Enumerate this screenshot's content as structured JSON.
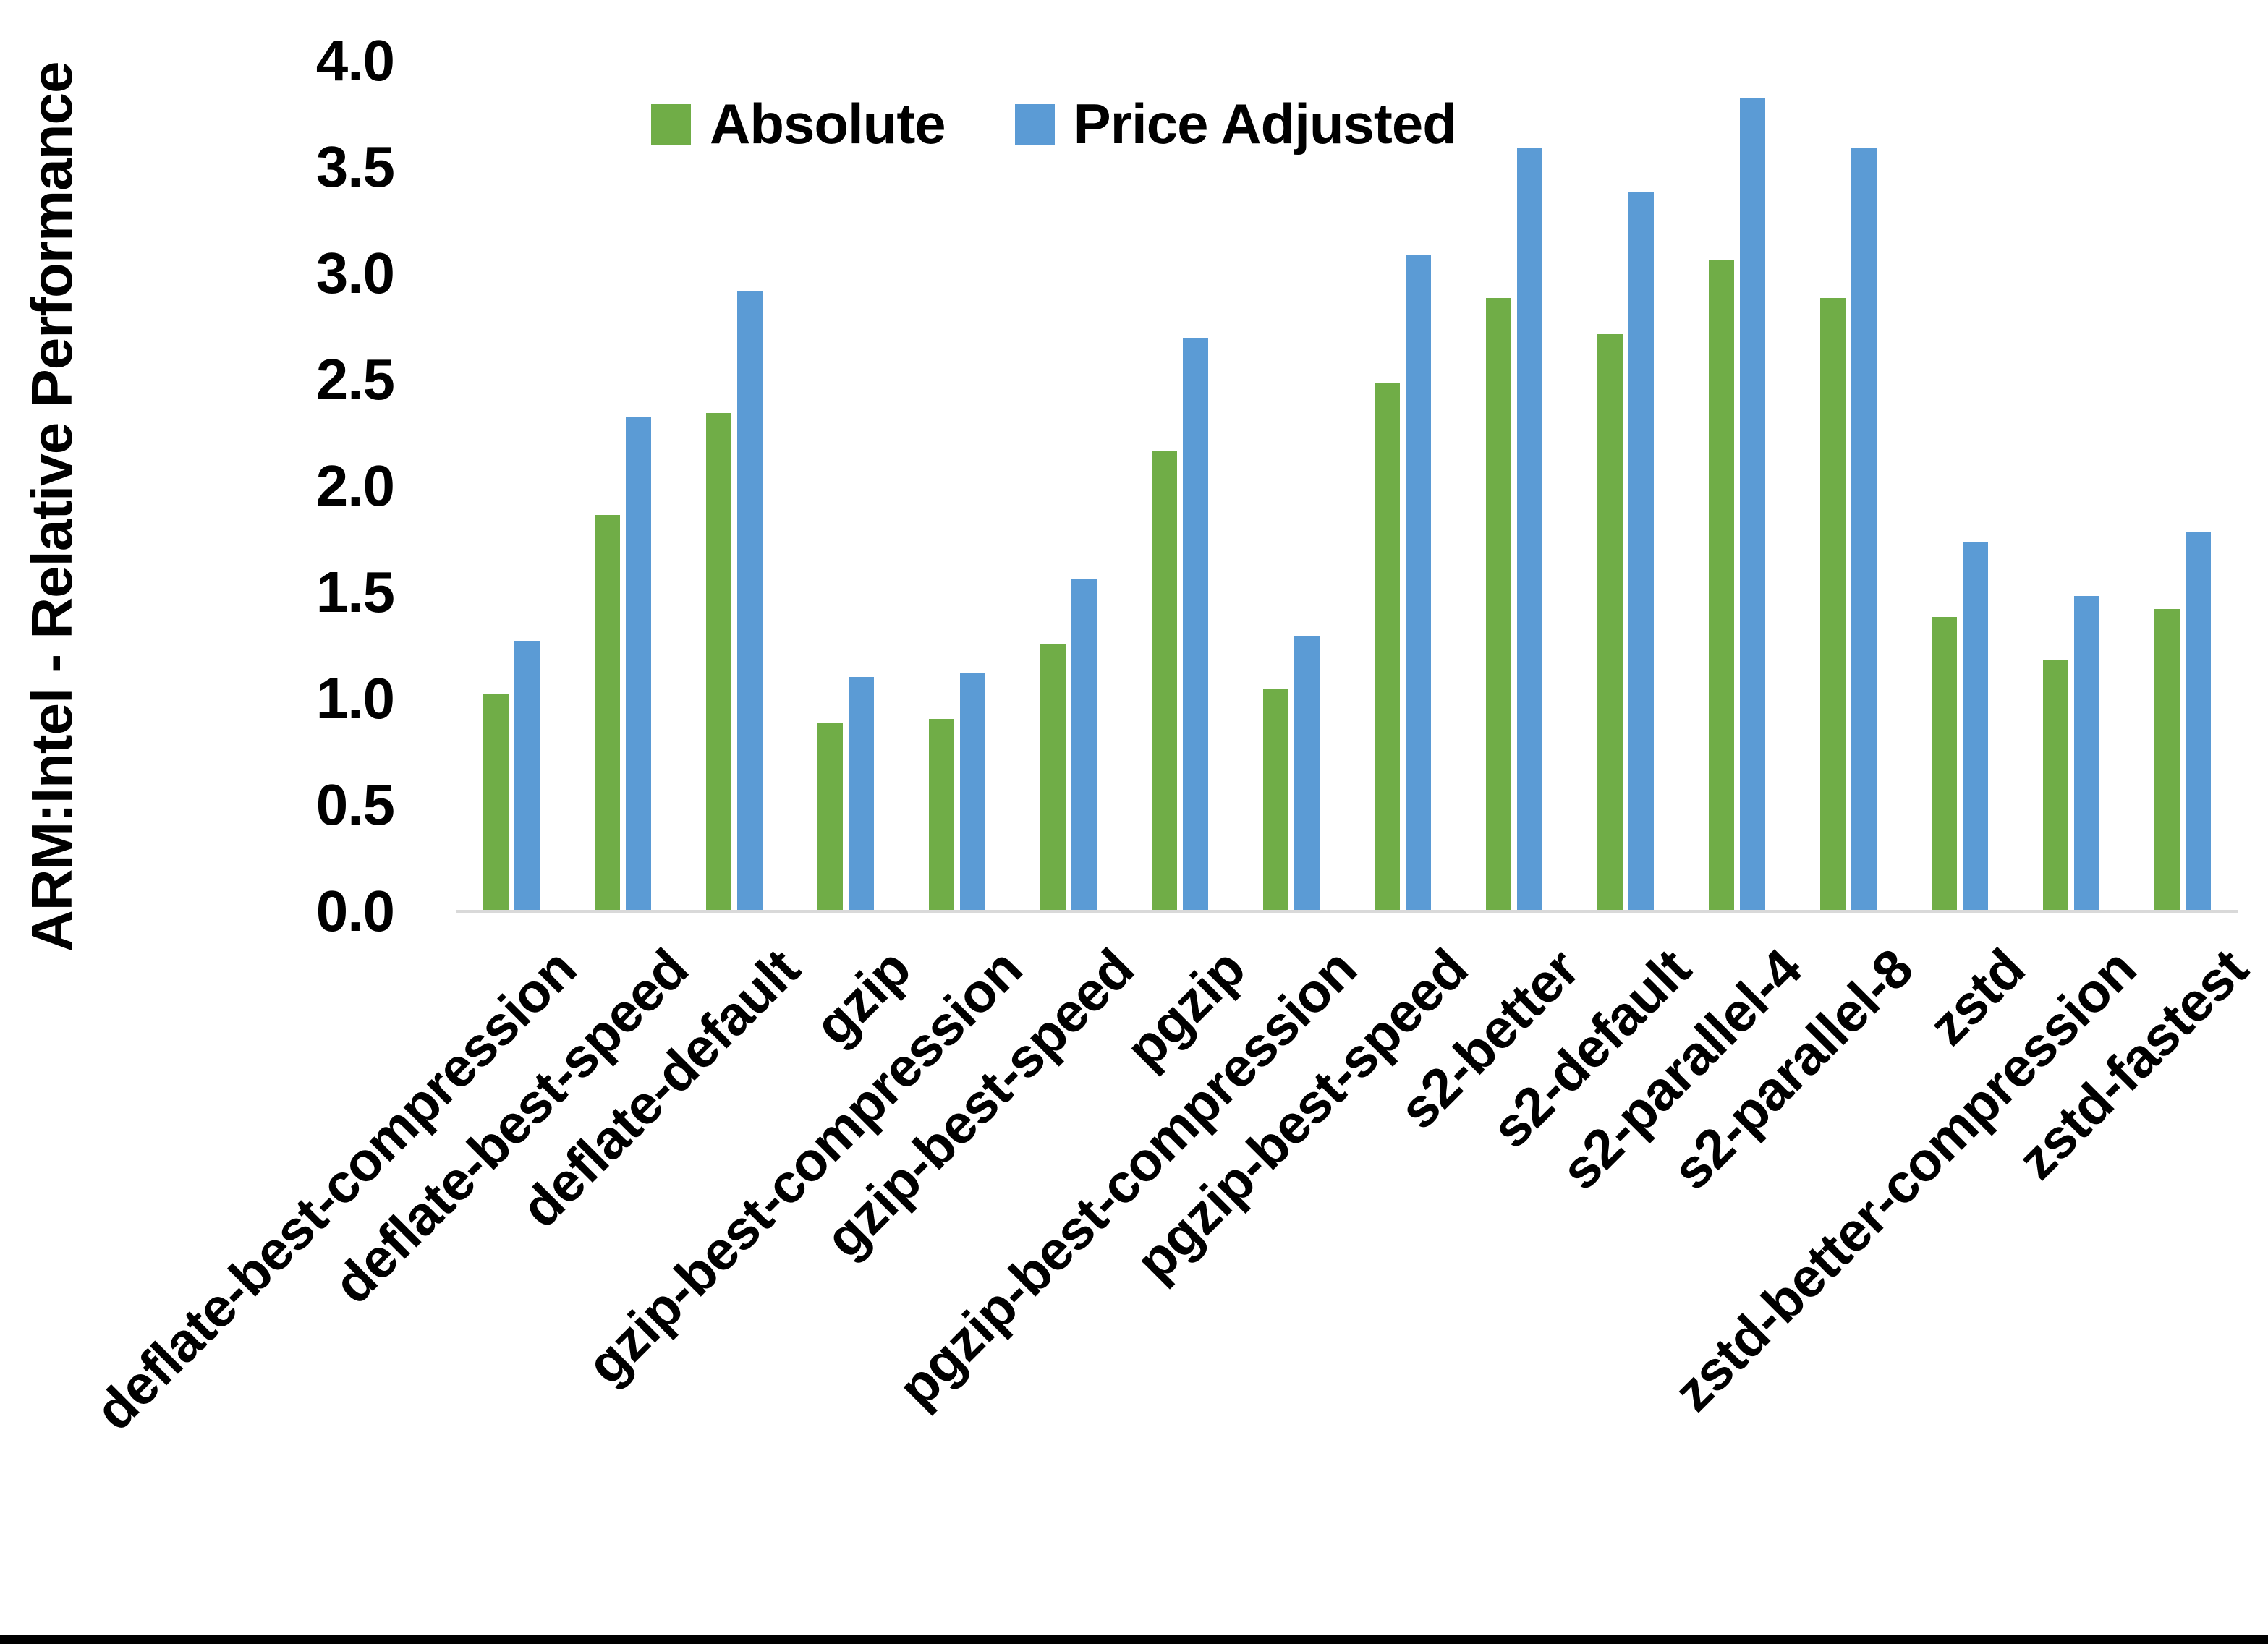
{
  "figure": {
    "background": "#FFFFFF",
    "bottom_border_color": "#000000",
    "axis_line_color": "#D9D9D9",
    "text_color": "#000000"
  },
  "chart_data": {
    "type": "bar",
    "title": "",
    "xlabel": "",
    "ylabel": "ARM:Intel - Relative Performance",
    "ylim": [
      0,
      4
    ],
    "ytick_step": 0.5,
    "ytick_labels": [
      "0.0",
      "0.5",
      "1.0",
      "1.5",
      "2.0",
      "2.5",
      "3.0",
      "3.5",
      "4.0"
    ],
    "grid": false,
    "legend_position": "top-center",
    "categories": [
      "deflate-best-compression",
      "deflate-best-speed",
      "deflate-default",
      "gzip",
      "gzip-best-compression",
      "gzip-best-speed",
      "pgzip",
      "pgzip-best-compression",
      "pgzip-best-speed",
      "s2-better",
      "s2-default",
      "s2-parallel-4",
      "s2-parallel-8",
      "zstd",
      "zstd-better-compression",
      "zstd-fastest"
    ],
    "series": [
      {
        "name": "Absolute",
        "color": "#70AD47",
        "values": [
          1.02,
          1.86,
          2.34,
          0.88,
          0.9,
          1.25,
          2.16,
          1.04,
          2.48,
          2.88,
          2.71,
          3.06,
          2.88,
          1.38,
          1.18,
          1.42
        ]
      },
      {
        "name": "Price Adjusted",
        "color": "#5B9BD5",
        "values": [
          1.27,
          2.32,
          2.91,
          1.1,
          1.12,
          1.56,
          2.69,
          1.29,
          3.08,
          3.59,
          3.38,
          3.82,
          3.59,
          1.73,
          1.48,
          1.78
        ]
      }
    ]
  }
}
